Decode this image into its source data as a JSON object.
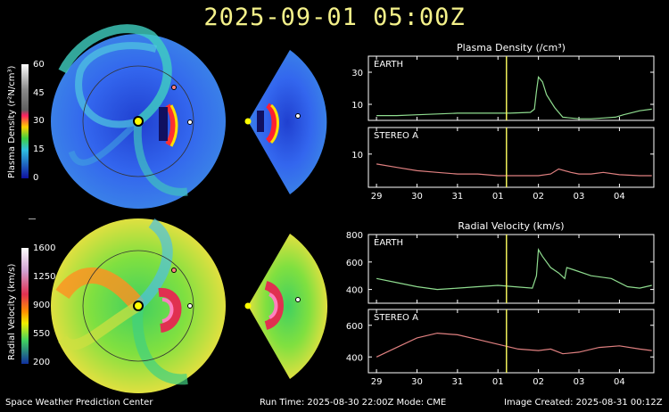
{
  "timestamp": "2025-09-01  05:00Z",
  "footer": {
    "left": "Space Weather Prediction Center",
    "center": "Run Time: 2025-08-30 22:00Z  Mode: CME",
    "right": "Image Created: 2025-08-31 00:12Z"
  },
  "colorbars": [
    {
      "label": "Plasma Density (r²N/cm³)",
      "ticks": [
        "60",
        "45",
        "30",
        "15",
        "0"
      ]
    },
    {
      "label": "Radial Velocity (km/s)",
      "ticks": [
        "1600",
        "1250",
        "900",
        "550",
        "200"
      ]
    }
  ],
  "colors": {
    "title": "#f4f18a",
    "earth_line": "#8fdc8f",
    "stereo_line": "#e08080",
    "time_marker": "#f2f25a",
    "sun": "#ffff00"
  },
  "chart_data": [
    {
      "type": "line",
      "title": "Plasma Density (/cm³)",
      "panel_label": "EARTH",
      "x": [
        29.0,
        29.5,
        30.0,
        30.5,
        31.0,
        31.5,
        32.0,
        32.3,
        32.8,
        32.9,
        32.95,
        33.0,
        33.1,
        33.2,
        33.4,
        33.6,
        33.8,
        34.0,
        34.3,
        34.6,
        34.9,
        35.1,
        35.5,
        35.8
      ],
      "y": [
        3,
        3,
        3.5,
        4,
        4.5,
        4.5,
        4.5,
        4.5,
        5,
        7,
        18,
        27,
        24,
        16,
        8,
        2,
        1.5,
        1,
        1,
        1.5,
        2,
        3.5,
        6,
        7
      ],
      "ylim": [
        0,
        40
      ],
      "yticks": [
        "30",
        "10"
      ],
      "xticks": [
        "29",
        "30",
        "31",
        "01",
        "02",
        "03",
        "04"
      ],
      "marker_x": 32.21
    },
    {
      "type": "line",
      "panel_label": "STEREO A",
      "x": [
        29.0,
        29.5,
        30.0,
        30.5,
        31.0,
        31.5,
        32.0,
        32.5,
        33.0,
        33.3,
        33.5,
        33.8,
        34.0,
        34.3,
        34.6,
        35.0,
        35.5,
        35.8
      ],
      "y": [
        7,
        6,
        5,
        4.5,
        4,
        4,
        3.5,
        3.5,
        3.5,
        4,
        5.5,
        4.5,
        4,
        4,
        4.5,
        3.8,
        3.5,
        3.5
      ],
      "ylim": [
        0,
        18
      ],
      "yticks": [
        "10"
      ],
      "xticks": [
        "29",
        "30",
        "31",
        "01",
        "02",
        "03",
        "04"
      ],
      "marker_x": 32.21
    },
    {
      "type": "line",
      "title": "Radial Velocity (km/s)",
      "panel_label": "EARTH",
      "x": [
        29.0,
        29.5,
        30.0,
        30.5,
        31.0,
        31.5,
        32.0,
        32.4,
        32.85,
        32.95,
        33.0,
        33.1,
        33.3,
        33.5,
        33.65,
        33.7,
        33.9,
        34.3,
        34.8,
        35.2,
        35.5,
        35.8
      ],
      "y": [
        480,
        450,
        420,
        400,
        410,
        420,
        430,
        420,
        410,
        500,
        690,
        640,
        560,
        520,
        480,
        560,
        540,
        500,
        480,
        420,
        410,
        430
      ],
      "ylim": [
        300,
        800
      ],
      "yticks": [
        "800",
        "600",
        "400"
      ],
      "xticks": [
        "29",
        "30",
        "31",
        "01",
        "02",
        "03",
        "04"
      ],
      "marker_x": 32.21
    },
    {
      "type": "line",
      "panel_label": "STEREO A",
      "x": [
        29.0,
        29.5,
        30.0,
        30.5,
        31.0,
        31.5,
        32.0,
        32.5,
        33.0,
        33.3,
        33.6,
        34.0,
        34.5,
        35.0,
        35.5,
        35.8
      ],
      "y": [
        400,
        460,
        520,
        550,
        540,
        510,
        480,
        450,
        440,
        450,
        420,
        430,
        460,
        470,
        450,
        440
      ],
      "ylim": [
        300,
        700
      ],
      "yticks": [
        "600",
        "400"
      ],
      "xticks": [
        "29",
        "30",
        "31",
        "01",
        "02",
        "03",
        "04"
      ],
      "marker_x": 32.21
    }
  ]
}
